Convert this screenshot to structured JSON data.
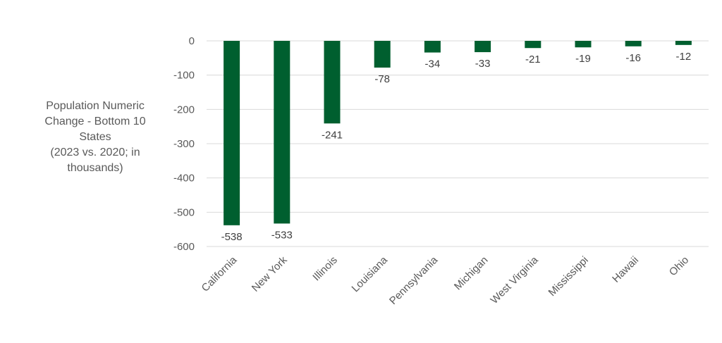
{
  "chart_data": {
    "type": "bar",
    "ylabel_lines": [
      "Population Numeric",
      "Change - Bottom 10",
      "States",
      "(2023 vs. 2020; in",
      "thousands)"
    ],
    "categories": [
      "California",
      "New York",
      "Illinois",
      "Louisiana",
      "Pennsylvania",
      "Michigan",
      "West Virginia",
      "Mississippi",
      "Hawaii",
      "Ohio"
    ],
    "values": [
      -538,
      -533,
      -241,
      -78,
      -34,
      -33,
      -21,
      -19,
      -16,
      -12
    ],
    "ylim": [
      -600,
      0
    ],
    "yticks": [
      0,
      -100,
      -200,
      -300,
      -400,
      -500,
      -600
    ],
    "grid": true,
    "legend": "none",
    "bar_color": "#005f2f"
  }
}
